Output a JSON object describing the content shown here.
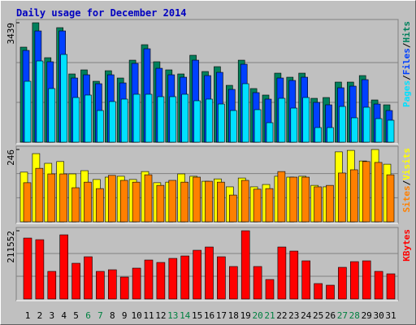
{
  "chart_data": {
    "type": "bar",
    "title": "Daily usage for December 2014",
    "title_color": "#0000c0",
    "legend_separator": "/",
    "categories": [
      "1",
      "2",
      "3",
      "4",
      "5",
      "6",
      "7",
      "8",
      "9",
      "10",
      "11",
      "12",
      "13",
      "14",
      "15",
      "16",
      "17",
      "18",
      "19",
      "20",
      "21",
      "22",
      "23",
      "24",
      "25",
      "26",
      "27",
      "28",
      "29",
      "30",
      "31"
    ],
    "category_colors": [
      "#000000",
      "#000000",
      "#000000",
      "#000000",
      "#000000",
      "#008040",
      "#008040",
      "#000000",
      "#000000",
      "#000000",
      "#000000",
      "#000000",
      "#008040",
      "#008040",
      "#000000",
      "#000000",
      "#000000",
      "#000000",
      "#000000",
      "#008040",
      "#008040",
      "#000000",
      "#000000",
      "#000000",
      "#000000",
      "#000000",
      "#008040",
      "#008040",
      "#000000",
      "#000000",
      "#000000"
    ],
    "panels": [
      {
        "ylim": [
          0,
          3439
        ],
        "yticks": [
          3439
        ],
        "series": [
          {
            "name": "Hits",
            "color": "#00805c",
            "values": [
              2737,
              3439,
              2433,
              3298,
              1965,
              2082,
              1754,
              2058,
              1848,
              2362,
              2807,
              2316,
              2082,
              1965,
              2503,
              2035,
              2175,
              1637,
              2362,
              1544,
              1357,
              1988,
              1871,
              1988,
              1263,
              1286,
              1731,
              1731,
              1918,
              1216,
              1076
            ]
          },
          {
            "name": "Files",
            "color": "#0040ff",
            "values": [
              2643,
              3204,
              2316,
              3204,
              1848,
              1941,
              1684,
              1941,
              1707,
              2269,
              2690,
              2128,
              1941,
              1871,
              2362,
              1918,
              2011,
              1520,
              2245,
              1427,
              1240,
              1848,
              1778,
              1871,
              1146,
              1076,
              1567,
              1614,
              1801,
              1099,
              912
            ]
          },
          {
            "name": "Pages",
            "color": "#00e0ff",
            "values": [
              1754,
              2339,
              1544,
              2526,
              1286,
              1357,
              912,
              1170,
              1240,
              1380,
              1380,
              1310,
              1310,
              1380,
              1193,
              1240,
              1099,
              912,
              1684,
              936,
              561,
              1263,
              982,
              1286,
              421,
              421,
              1029,
              702,
              1006,
              678,
              632
            ]
          }
        ]
      },
      {
        "ylim": [
          0,
          246
        ],
        "yticks": [
          246
        ],
        "series": [
          {
            "name": "Visits",
            "color": "#ffff00",
            "values": [
              169,
              232,
              199,
              205,
              163,
              174,
              144,
              152,
              155,
              144,
              171,
              133,
              135,
              163,
              155,
              138,
              146,
              119,
              149,
              119,
              127,
              155,
              152,
              155,
              124,
              119,
              238,
              243,
              207,
              246,
              196
            ]
          },
          {
            "name": "Sites",
            "color": "#ff8000",
            "values": [
              133,
              182,
              163,
              163,
              116,
              135,
              113,
              158,
              141,
              135,
              160,
              124,
              141,
              135,
              152,
              138,
              135,
              91,
              141,
              111,
              113,
              171,
              152,
              152,
              119,
              124,
              166,
              177,
              205,
              202,
              160
            ]
          }
        ]
      },
      {
        "ylim": [
          0,
          211552
        ],
        "yticks": [
          211552
        ],
        "series": [
          {
            "name": "KBytes",
            "color": "#ff0000",
            "values": [
              188850,
              183814,
              85612,
              198922,
              110792,
              130936,
              85612,
              90648,
              67986,
              95684,
              120864,
              113310,
              125900,
              133454,
              151080,
              161152,
              130936,
              100720,
              211552,
              100720,
              60432,
              161152,
              148562,
              118346,
              47842,
              42806,
              98202,
              115828,
              118346,
              85612,
              78058
            ]
          }
        ]
      }
    ]
  }
}
